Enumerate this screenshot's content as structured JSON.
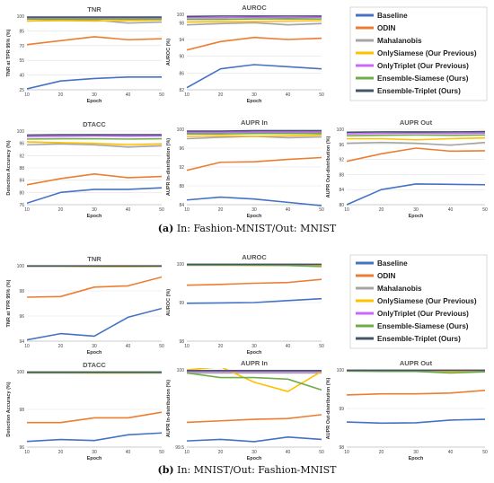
{
  "series_names": [
    "Baseline",
    "ODIN",
    "Mahalanobis",
    "OnlySiamese (Our Previous)",
    "OnlyTriplet (Our Previous)",
    "Ensemble-Siamese (Ours)",
    "Ensemble-Triplet (Ours)"
  ],
  "series_colors": [
    "#4472C4",
    "#ED7D31",
    "#A5A5A5",
    "#FFC000",
    "#CC66FF",
    "#70AD47",
    "#44546A"
  ],
  "captions": [
    {
      "label": "(a)",
      "text": " In: Fashion-MNIST/Out: MNIST"
    },
    {
      "label": "(b)",
      "text": " In: MNIST/Out: Fashion-MNIST"
    }
  ],
  "chart_data": [
    {
      "type": "line",
      "panel": "a",
      "title": "TNR",
      "xlabel": "Epoch",
      "ylabel": "TNR at TPR 95% (%)",
      "x": [
        10,
        20,
        30,
        40,
        50
      ],
      "ylim": [
        25,
        100
      ],
      "yticks": [
        25,
        40,
        55,
        70,
        85,
        100
      ],
      "xticks": [
        10,
        20,
        30,
        40,
        50
      ],
      "series": [
        {
          "name": "Baseline",
          "values": [
            26,
            34,
            36.5,
            38,
            38
          ]
        },
        {
          "name": "ODIN",
          "values": [
            71,
            75,
            79,
            76,
            77
          ]
        },
        {
          "name": "Mahalanobis",
          "values": [
            95,
            96,
            96,
            93,
            94
          ]
        },
        {
          "name": "OnlySiamese (Our Previous)",
          "values": [
            95,
            95.5,
            95,
            95.5,
            96
          ]
        },
        {
          "name": "OnlyTriplet (Our Previous)",
          "values": [
            98,
            98,
            98,
            98,
            98
          ]
        },
        {
          "name": "Ensemble-Siamese (Ours)",
          "values": [
            97,
            97,
            97,
            97,
            97
          ]
        },
        {
          "name": "Ensemble-Triplet (Ours)",
          "values": [
            99,
            99,
            99,
            99,
            99
          ]
        }
      ]
    },
    {
      "type": "line",
      "panel": "a",
      "title": "AUROC",
      "xlabel": "Epoch",
      "ylabel": "AUROC (%)",
      "x": [
        10,
        20,
        30,
        40,
        50
      ],
      "ylim": [
        82,
        100
      ],
      "yticks": [
        82,
        86,
        90,
        94,
        98,
        100
      ],
      "xticks": [
        10,
        20,
        30,
        40,
        50
      ],
      "series": [
        {
          "name": "Baseline",
          "values": [
            82.5,
            87,
            88,
            87.5,
            87
          ]
        },
        {
          "name": "ODIN",
          "values": [
            91.5,
            93.5,
            94.5,
            94,
            94.3
          ]
        },
        {
          "name": "Mahalanobis",
          "values": [
            97.5,
            97.8,
            98,
            97.5,
            97.8
          ]
        },
        {
          "name": "OnlySiamese (Our Previous)",
          "values": [
            98.2,
            98.3,
            98.3,
            98.4,
            98.5
          ]
        },
        {
          "name": "OnlyTriplet (Our Previous)",
          "values": [
            99.2,
            99.2,
            99.3,
            99.2,
            99.3
          ]
        },
        {
          "name": "Ensemble-Siamese (Ours)",
          "values": [
            98.8,
            98.8,
            98.9,
            98.9,
            98.9
          ]
        },
        {
          "name": "Ensemble-Triplet (Ours)",
          "values": [
            99.5,
            99.6,
            99.6,
            99.6,
            99.6
          ]
        }
      ]
    },
    {
      "type": "line",
      "panel": "a",
      "title": "DTACC",
      "xlabel": "Epoch",
      "ylabel": "Detection Accuracy (%)",
      "x": [
        10,
        20,
        30,
        40,
        50
      ],
      "ylim": [
        76,
        100
      ],
      "yticks": [
        76,
        80,
        84,
        88,
        92,
        96,
        100
      ],
      "xticks": [
        10,
        20,
        30,
        40,
        50
      ],
      "series": [
        {
          "name": "Baseline",
          "values": [
            76.5,
            80,
            81,
            81,
            81.5
          ]
        },
        {
          "name": "ODIN",
          "values": [
            82.5,
            84.5,
            86,
            84.8,
            85.2
          ]
        },
        {
          "name": "Mahalanobis",
          "values": [
            95.5,
            95.8,
            95.5,
            94.8,
            95.2
          ]
        },
        {
          "name": "OnlySiamese (Our Previous)",
          "values": [
            96.5,
            96.2,
            96,
            95.5,
            95.8
          ]
        },
        {
          "name": "OnlyTriplet (Our Previous)",
          "values": [
            98.2,
            98.3,
            98.4,
            98.3,
            98.4
          ]
        },
        {
          "name": "Ensemble-Siamese (Ours)",
          "values": [
            97.4,
            97.5,
            97.5,
            97.4,
            97.5
          ]
        },
        {
          "name": "Ensemble-Triplet (Ours)",
          "values": [
            98.7,
            98.8,
            98.8,
            98.8,
            98.8
          ]
        }
      ]
    },
    {
      "type": "line",
      "panel": "a",
      "title": "AUPR In",
      "xlabel": "Epoch",
      "ylabel": "AUPR In-distribution (%)",
      "x": [
        10,
        20,
        30,
        40,
        50
      ],
      "ylim": [
        84,
        100
      ],
      "yticks": [
        84,
        88,
        92,
        96,
        100
      ],
      "xticks": [
        10,
        20,
        30,
        40,
        50
      ],
      "series": [
        {
          "name": "Baseline",
          "values": [
            85,
            85.6,
            85.2,
            84.5,
            83.8
          ]
        },
        {
          "name": "ODIN",
          "values": [
            91.3,
            93,
            93.1,
            93.6,
            94
          ]
        },
        {
          "name": "Mahalanobis",
          "values": [
            98,
            98.3,
            98.5,
            98.2,
            98.4
          ]
        },
        {
          "name": "OnlySiamese (Our Previous)",
          "values": [
            98.5,
            98.6,
            98.5,
            98.6,
            98.8
          ]
        },
        {
          "name": "OnlyTriplet (Our Previous)",
          "values": [
            99.3,
            99.3,
            99.4,
            99.4,
            99.4
          ]
        },
        {
          "name": "Ensemble-Siamese (Ours)",
          "values": [
            99,
            99,
            99.1,
            99.1,
            99.1
          ]
        },
        {
          "name": "Ensemble-Triplet (Ours)",
          "values": [
            99.6,
            99.6,
            99.7,
            99.7,
            99.7
          ]
        }
      ]
    },
    {
      "type": "line",
      "panel": "a",
      "title": "AUPR Out",
      "xlabel": "Epoch",
      "ylabel": "AUPR Out-distribution (%)",
      "x": [
        10,
        20,
        30,
        40,
        50
      ],
      "ylim": [
        80,
        100
      ],
      "yticks": [
        80,
        84,
        88,
        92,
        96,
        100
      ],
      "xticks": [
        10,
        20,
        30,
        40,
        50
      ],
      "series": [
        {
          "name": "Baseline",
          "values": [
            80,
            84,
            85.5,
            85.4,
            85.3
          ]
        },
        {
          "name": "ODIN",
          "values": [
            91.5,
            93.5,
            95,
            94.2,
            94.3
          ]
        },
        {
          "name": "Mahalanobis",
          "values": [
            96.3,
            96.5,
            96.3,
            95.8,
            96.5
          ]
        },
        {
          "name": "OnlySiamese (Our Previous)",
          "values": [
            97.5,
            97.5,
            97.2,
            97.5,
            97.7
          ]
        },
        {
          "name": "OnlyTriplet (Our Previous)",
          "values": [
            98.8,
            98.9,
            99,
            98.9,
            99
          ]
        },
        {
          "name": "Ensemble-Siamese (Ours)",
          "values": [
            98.3,
            98.4,
            98.5,
            98.4,
            98.5
          ]
        },
        {
          "name": "Ensemble-Triplet (Ours)",
          "values": [
            99.2,
            99.3,
            99.3,
            99.3,
            99.4
          ]
        }
      ]
    },
    {
      "type": "line",
      "panel": "b",
      "title": "TNR",
      "xlabel": "Epoch",
      "ylabel": "TNR at TPR 95% (%)",
      "x": [
        10,
        20,
        30,
        40,
        50
      ],
      "ylim": [
        94,
        100
      ],
      "yticks": [
        94,
        96,
        98,
        100
      ],
      "xticks": [
        10,
        20,
        30,
        40,
        50
      ],
      "series": [
        {
          "name": "Baseline",
          "values": [
            94.1,
            94.6,
            94.4,
            95.9,
            96.6
          ]
        },
        {
          "name": "ODIN",
          "values": [
            97.5,
            97.55,
            98.3,
            98.4,
            99.1
          ]
        },
        {
          "name": "Mahalanobis",
          "values": [
            99.96,
            99.96,
            99.97,
            99.97,
            99.97
          ]
        },
        {
          "name": "OnlySiamese (Our Previous)",
          "values": [
            99.95,
            99.95,
            99.93,
            99.92,
            99.94
          ]
        },
        {
          "name": "OnlyTriplet (Our Previous)",
          "values": [
            99.98,
            99.98,
            99.98,
            99.98,
            99.98
          ]
        },
        {
          "name": "Ensemble-Siamese (Ours)",
          "values": [
            99.97,
            99.97,
            99.97,
            99.97,
            99.97
          ]
        },
        {
          "name": "Ensemble-Triplet (Ours)",
          "values": [
            99.99,
            99.99,
            99.99,
            99.99,
            99.99
          ]
        }
      ]
    },
    {
      "type": "line",
      "panel": "b",
      "title": "AUROC",
      "xlabel": "Epoch",
      "ylabel": "AUROC (%)",
      "x": [
        10,
        20,
        30,
        40,
        50
      ],
      "ylim": [
        98,
        100
      ],
      "yticks": [
        98,
        99,
        100
      ],
      "xticks": [
        10,
        20,
        30,
        40,
        50
      ],
      "series": [
        {
          "name": "Baseline",
          "values": [
            98.98,
            98.99,
            99,
            99.05,
            99.1
          ]
        },
        {
          "name": "ODIN",
          "values": [
            99.45,
            99.47,
            99.5,
            99.52,
            99.6
          ]
        },
        {
          "name": "Mahalanobis",
          "values": [
            99.97,
            99.97,
            99.97,
            99.97,
            99.96
          ]
        },
        {
          "name": "OnlySiamese (Our Previous)",
          "values": [
            99.97,
            99.97,
            99.96,
            99.96,
            99.95
          ]
        },
        {
          "name": "OnlyTriplet (Our Previous)",
          "values": [
            99.99,
            99.99,
            99.99,
            99.99,
            99.99
          ]
        },
        {
          "name": "Ensemble-Siamese (Ours)",
          "values": [
            99.97,
            99.97,
            99.97,
            99.96,
            99.93
          ]
        },
        {
          "name": "Ensemble-Triplet (Ours)",
          "values": [
            99.99,
            99.99,
            99.99,
            99.99,
            99.99
          ]
        }
      ]
    },
    {
      "type": "line",
      "panel": "b",
      "title": "DTACC",
      "xlabel": "Epoch",
      "ylabel": "Detection Accuracy (%)",
      "x": [
        10,
        20,
        30,
        40,
        50
      ],
      "ylim": [
        96,
        100
      ],
      "yticks": [
        96,
        98,
        100
      ],
      "xticks": [
        10,
        20,
        30,
        40,
        50
      ],
      "series": [
        {
          "name": "Baseline",
          "values": [
            96.3,
            96.4,
            96.35,
            96.65,
            96.75
          ]
        },
        {
          "name": "ODIN",
          "values": [
            97.3,
            97.3,
            97.55,
            97.55,
            97.85
          ]
        },
        {
          "name": "Mahalanobis",
          "values": [
            99.93,
            99.93,
            99.93,
            99.93,
            99.93
          ]
        },
        {
          "name": "OnlySiamese (Our Previous)",
          "values": [
            99.94,
            99.94,
            99.93,
            99.93,
            99.94
          ]
        },
        {
          "name": "OnlyTriplet (Our Previous)",
          "values": [
            99.97,
            99.97,
            99.97,
            99.97,
            99.97
          ]
        },
        {
          "name": "Ensemble-Siamese (Ours)",
          "values": [
            99.95,
            99.95,
            99.95,
            99.95,
            99.95
          ]
        },
        {
          "name": "Ensemble-Triplet (Ours)",
          "values": [
            99.98,
            99.98,
            99.98,
            99.98,
            99.98
          ]
        }
      ]
    },
    {
      "type": "line",
      "panel": "b",
      "title": "AUPR In",
      "xlabel": "Epoch",
      "ylabel": "AUPR In-distribution (%)",
      "x": [
        10,
        20,
        30,
        40,
        50
      ],
      "ylim": [
        99.5,
        100
      ],
      "yticks": [
        99.5,
        100
      ],
      "xticks": [
        10,
        20,
        30,
        40,
        50
      ],
      "series": [
        {
          "name": "Baseline",
          "values": [
            99.54,
            99.55,
            99.535,
            99.565,
            99.55
          ]
        },
        {
          "name": "ODIN",
          "values": [
            99.66,
            99.67,
            99.68,
            99.685,
            99.71
          ]
        },
        {
          "name": "Mahalanobis",
          "values": [
            99.98,
            99.98,
            99.98,
            99.98,
            99.98
          ]
        },
        {
          "name": "OnlySiamese (Our Previous)",
          "values": [
            100,
            100.02,
            99.92,
            99.86,
            99.99
          ]
        },
        {
          "name": "OnlyTriplet (Our Previous)",
          "values": [
            99.99,
            99.99,
            99.99,
            99.99,
            99.99
          ]
        },
        {
          "name": "Ensemble-Siamese (Ours)",
          "values": [
            99.98,
            99.95,
            99.95,
            99.94,
            99.87
          ]
        },
        {
          "name": "Ensemble-Triplet (Ours)",
          "values": [
            99.995,
            99.995,
            99.995,
            99.995,
            99.995
          ]
        }
      ]
    },
    {
      "type": "line",
      "panel": "b",
      "title": "AUPR Out",
      "xlabel": "Epoch",
      "ylabel": "AUPR Out-distribution (%)",
      "x": [
        10,
        20,
        30,
        40,
        50
      ],
      "ylim": [
        98,
        100
      ],
      "yticks": [
        98,
        99,
        100
      ],
      "xticks": [
        10,
        20,
        30,
        40,
        50
      ],
      "series": [
        {
          "name": "Baseline",
          "values": [
            98.65,
            98.62,
            98.63,
            98.7,
            98.72
          ]
        },
        {
          "name": "ODIN",
          "values": [
            99.35,
            99.38,
            99.38,
            99.4,
            99.47
          ]
        },
        {
          "name": "Mahalanobis",
          "values": [
            99.98,
            99.98,
            99.98,
            99.98,
            99.98
          ]
        },
        {
          "name": "OnlySiamese (Our Previous)",
          "values": [
            99.97,
            99.98,
            99.96,
            99.95,
            99.96
          ]
        },
        {
          "name": "OnlyTriplet (Our Previous)",
          "values": [
            99.99,
            99.99,
            99.99,
            99.99,
            99.99
          ]
        },
        {
          "name": "Ensemble-Siamese (Ours)",
          "values": [
            99.97,
            99.96,
            99.96,
            99.92,
            99.95
          ]
        },
        {
          "name": "Ensemble-Triplet (Ours)",
          "values": [
            99.99,
            99.99,
            99.99,
            99.99,
            99.99
          ]
        }
      ]
    }
  ]
}
